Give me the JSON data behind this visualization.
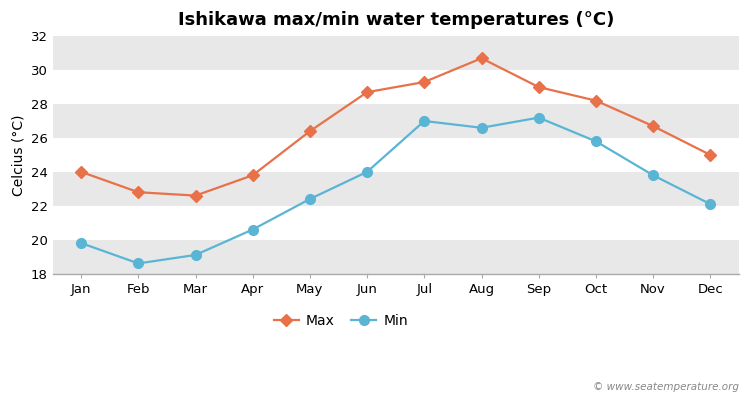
{
  "title": "Ishikawa max/min water temperatures (°C)",
  "ylabel": "Celcius (°C)",
  "months": [
    "Jan",
    "Feb",
    "Mar",
    "Apr",
    "May",
    "Jun",
    "Jul",
    "Aug",
    "Sep",
    "Oct",
    "Nov",
    "Dec"
  ],
  "max_temps": [
    24.0,
    22.8,
    22.6,
    23.8,
    26.4,
    28.7,
    29.3,
    30.7,
    29.0,
    28.2,
    26.7,
    25.0
  ],
  "min_temps": [
    19.8,
    18.6,
    19.1,
    20.6,
    22.4,
    24.0,
    27.0,
    26.6,
    27.2,
    25.8,
    23.8,
    22.1
  ],
  "max_color": "#e8714a",
  "min_color": "#5ab5d5",
  "figure_bg": "#ffffff",
  "plot_bg_white": "#ffffff",
  "band_color": "#e8e8e8",
  "bottom_spine_color": "#aaaaaa",
  "ylim": [
    18,
    32
  ],
  "yticks": [
    18,
    20,
    22,
    24,
    26,
    28,
    30,
    32
  ],
  "legend_labels": [
    "Max",
    "Min"
  ],
  "watermark": "© www.seatemperature.org",
  "title_fontsize": 13,
  "axis_label_fontsize": 10,
  "tick_fontsize": 9.5,
  "legend_fontsize": 10
}
